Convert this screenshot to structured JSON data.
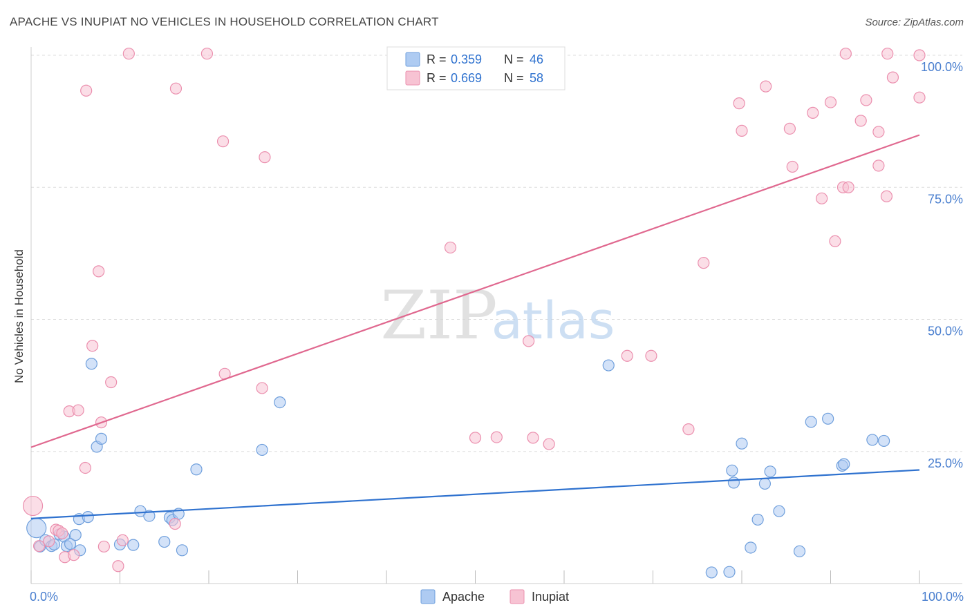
{
  "title": "APACHE VS INUPIAT NO VEHICLES IN HOUSEHOLD CORRELATION CHART",
  "source": "Source: ZipAtlas.com",
  "watermark": {
    "zip": "ZIP",
    "atlas": "atlas"
  },
  "colors": {
    "apache_fill": "#aecbf2",
    "apache_stroke": "#6f9fdc",
    "apache_line": "#2f72cf",
    "inupiat_fill": "#f7c3d3",
    "inupiat_stroke": "#eb8fae",
    "inupiat_line": "#e0688f",
    "axis_text": "#4a7fcf",
    "grid": "#dddddd"
  },
  "legend": {
    "apache": {
      "r_label": "R = ",
      "r_value": "0.359",
      "n_label": "N = ",
      "n_value": "46"
    },
    "inupiat": {
      "r_label": "R = ",
      "r_value": "0.669",
      "n_label": "N = ",
      "n_value": "58"
    }
  },
  "chart_data": {
    "type": "scatter",
    "xlabel": "",
    "ylabel": "No Vehicles in Household",
    "xlim": [
      0,
      100
    ],
    "ylim": [
      0,
      102
    ],
    "x_tick_labels": [
      {
        "value": 0,
        "label": "0.0%"
      },
      {
        "value": 100,
        "label": "100.0%"
      }
    ],
    "y_tick_labels": [
      {
        "value": 25,
        "label": "25.0%"
      },
      {
        "value": 50,
        "label": "50.0%"
      },
      {
        "value": 75,
        "label": "75.0%"
      },
      {
        "value": 100,
        "label": "100.0%"
      }
    ],
    "gridlines_y": [
      25,
      50,
      75,
      100
    ],
    "series": [
      {
        "name": "Apache",
        "key": "apache",
        "trend": {
          "x": [
            0,
            100
          ],
          "y": [
            12.3,
            21.5
          ]
        },
        "points": [
          {
            "x": 0.6,
            "y": 10.5,
            "big": true
          },
          {
            "x": 1.0,
            "y": 7.0
          },
          {
            "x": 1.6,
            "y": 8.2
          },
          {
            "x": 2.3,
            "y": 7.1
          },
          {
            "x": 2.6,
            "y": 7.4
          },
          {
            "x": 3.2,
            "y": 9.3
          },
          {
            "x": 3.7,
            "y": 8.9
          },
          {
            "x": 4.0,
            "y": 7.1
          },
          {
            "x": 4.4,
            "y": 7.5
          },
          {
            "x": 5.0,
            "y": 9.2
          },
          {
            "x": 5.5,
            "y": 6.3
          },
          {
            "x": 5.4,
            "y": 12.2
          },
          {
            "x": 6.4,
            "y": 12.6
          },
          {
            "x": 6.8,
            "y": 41.6
          },
          {
            "x": 7.4,
            "y": 25.9
          },
          {
            "x": 7.9,
            "y": 27.4
          },
          {
            "x": 10.0,
            "y": 7.4
          },
          {
            "x": 11.5,
            "y": 7.3
          },
          {
            "x": 12.3,
            "y": 13.7
          },
          {
            "x": 13.3,
            "y": 12.8
          },
          {
            "x": 15.0,
            "y": 7.9
          },
          {
            "x": 15.6,
            "y": 12.5
          },
          {
            "x": 15.9,
            "y": 12.0
          },
          {
            "x": 16.6,
            "y": 13.2
          },
          {
            "x": 17.0,
            "y": 6.3
          },
          {
            "x": 18.6,
            "y": 21.6
          },
          {
            "x": 26.0,
            "y": 25.3
          },
          {
            "x": 28.0,
            "y": 34.3
          },
          {
            "x": 65.0,
            "y": 41.3
          },
          {
            "x": 76.6,
            "y": 2.1
          },
          {
            "x": 78.6,
            "y": 2.2
          },
          {
            "x": 78.9,
            "y": 21.4
          },
          {
            "x": 79.1,
            "y": 19.1
          },
          {
            "x": 80.0,
            "y": 26.5
          },
          {
            "x": 81.0,
            "y": 6.8
          },
          {
            "x": 81.8,
            "y": 12.1
          },
          {
            "x": 82.6,
            "y": 18.9
          },
          {
            "x": 83.2,
            "y": 21.2
          },
          {
            "x": 84.2,
            "y": 13.7
          },
          {
            "x": 86.5,
            "y": 6.1
          },
          {
            "x": 87.8,
            "y": 30.6
          },
          {
            "x": 89.7,
            "y": 31.2
          },
          {
            "x": 91.3,
            "y": 22.3
          },
          {
            "x": 91.5,
            "y": 22.6
          },
          {
            "x": 94.7,
            "y": 27.2
          },
          {
            "x": 96.0,
            "y": 27.0
          }
        ]
      },
      {
        "name": "Inupiat",
        "key": "inupiat",
        "trend": {
          "x": [
            0,
            100
          ],
          "y": [
            25.8,
            84.9
          ]
        },
        "points": [
          {
            "x": 0.2,
            "y": 14.7,
            "big": true
          },
          {
            "x": 0.9,
            "y": 7.1
          },
          {
            "x": 2.0,
            "y": 8.0
          },
          {
            "x": 2.8,
            "y": 10.2
          },
          {
            "x": 3.1,
            "y": 10.0
          },
          {
            "x": 3.5,
            "y": 9.5
          },
          {
            "x": 3.8,
            "y": 5.0
          },
          {
            "x": 4.3,
            "y": 32.6
          },
          {
            "x": 4.8,
            "y": 5.4
          },
          {
            "x": 5.3,
            "y": 32.8
          },
          {
            "x": 6.2,
            "y": 93.3
          },
          {
            "x": 6.1,
            "y": 21.9
          },
          {
            "x": 6.9,
            "y": 45.0
          },
          {
            "x": 7.6,
            "y": 59.1
          },
          {
            "x": 7.9,
            "y": 30.5
          },
          {
            "x": 8.2,
            "y": 7.0
          },
          {
            "x": 9.0,
            "y": 38.1
          },
          {
            "x": 9.8,
            "y": 3.3
          },
          {
            "x": 10.3,
            "y": 8.2
          },
          {
            "x": 11.0,
            "y": 100.3
          },
          {
            "x": 16.2,
            "y": 11.3
          },
          {
            "x": 16.3,
            "y": 93.7
          },
          {
            "x": 19.8,
            "y": 100.3
          },
          {
            "x": 21.6,
            "y": 83.7
          },
          {
            "x": 21.8,
            "y": 39.7
          },
          {
            "x": 26.0,
            "y": 37.0
          },
          {
            "x": 26.3,
            "y": 80.7
          },
          {
            "x": 47.2,
            "y": 63.6
          },
          {
            "x": 50.0,
            "y": 27.6
          },
          {
            "x": 52.4,
            "y": 27.7
          },
          {
            "x": 56.0,
            "y": 45.9
          },
          {
            "x": 56.5,
            "y": 27.6
          },
          {
            "x": 58.3,
            "y": 26.4
          },
          {
            "x": 67.1,
            "y": 43.1
          },
          {
            "x": 69.8,
            "y": 43.1
          },
          {
            "x": 74.0,
            "y": 29.2
          },
          {
            "x": 75.7,
            "y": 60.7
          },
          {
            "x": 79.7,
            "y": 90.9
          },
          {
            "x": 80.0,
            "y": 85.7
          },
          {
            "x": 82.7,
            "y": 94.1
          },
          {
            "x": 85.4,
            "y": 86.1
          },
          {
            "x": 85.7,
            "y": 78.9
          },
          {
            "x": 88.0,
            "y": 89.1
          },
          {
            "x": 89.0,
            "y": 72.9
          },
          {
            "x": 90.0,
            "y": 91.1
          },
          {
            "x": 90.5,
            "y": 64.8
          },
          {
            "x": 91.4,
            "y": 75.0
          },
          {
            "x": 91.7,
            "y": 100.3
          },
          {
            "x": 92.0,
            "y": 75.0
          },
          {
            "x": 93.4,
            "y": 87.6
          },
          {
            "x": 94.0,
            "y": 91.5
          },
          {
            "x": 95.4,
            "y": 79.1
          },
          {
            "x": 95.4,
            "y": 85.5
          },
          {
            "x": 96.3,
            "y": 73.3
          },
          {
            "x": 96.4,
            "y": 100.3
          },
          {
            "x": 97.0,
            "y": 95.8
          },
          {
            "x": 100.0,
            "y": 92.0
          },
          {
            "x": 100.0,
            "y": 100.0
          }
        ]
      }
    ]
  },
  "bottom_legend": [
    {
      "key": "apache",
      "label": "Apache"
    },
    {
      "key": "inupiat",
      "label": "Inupiat"
    }
  ]
}
